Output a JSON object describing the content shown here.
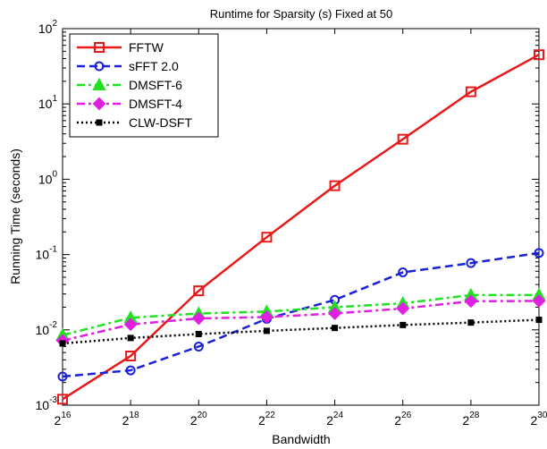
{
  "chart_data": {
    "type": "line",
    "title": "Runtime for Sparsity (s) Fixed at 50",
    "xlabel": "Bandwidth",
    "ylabel": "Running Time (seconds)",
    "x_scale": "log2",
    "y_scale": "log10",
    "x": [
      65536,
      131072,
      262144,
      524288,
      1048576,
      2097152,
      4194304,
      8388608,
      16777216,
      33554432,
      67108864,
      134217728,
      268435456,
      536870912,
      1073741824
    ],
    "xlim": [
      65536,
      1073741824
    ],
    "ylim": [
      0.001,
      100
    ],
    "x_tick_labels": [
      {
        "base": "2",
        "exp": "16"
      },
      {
        "base": "2",
        "exp": "18"
      },
      {
        "base": "2",
        "exp": "20"
      },
      {
        "base": "2",
        "exp": "22"
      },
      {
        "base": "2",
        "exp": "24"
      },
      {
        "base": "2",
        "exp": "26"
      },
      {
        "base": "2",
        "exp": "28"
      },
      {
        "base": "2",
        "exp": "30"
      }
    ],
    "y_tick_labels": [
      {
        "base": "10",
        "exp": "-3"
      },
      {
        "base": "10",
        "exp": "-2"
      },
      {
        "base": "10",
        "exp": "-1"
      },
      {
        "base": "10",
        "exp": "0"
      },
      {
        "base": "10",
        "exp": "1"
      },
      {
        "base": "10",
        "exp": "2"
      }
    ],
    "legend_position": "top-left",
    "grid": false,
    "series": [
      {
        "name": "FFTW",
        "color": "#e8191b",
        "dash": "solid",
        "marker": "square",
        "x": [
          65536,
          262144,
          1048576,
          4194304,
          16777216,
          67108864,
          268435456,
          1073741824
        ],
        "values": [
          0.0012,
          0.0045,
          0.033,
          0.17,
          0.82,
          3.4,
          14.5,
          45
        ]
      },
      {
        "name": "sFFT 2.0",
        "color": "#1a21d6",
        "dash": "dashed",
        "marker": "circle",
        "x": [
          65536,
          262144,
          1048576,
          4194304,
          16777216,
          67108864,
          268435456,
          1073741824
        ],
        "values": [
          0.0024,
          0.0029,
          0.006,
          0.014,
          0.025,
          0.058,
          0.077,
          0.105
        ]
      },
      {
        "name": "DMSFT-6",
        "color": "#22e022",
        "dash": "dashdot",
        "marker": "triangle",
        "x": [
          65536,
          262144,
          1048576,
          4194304,
          16777216,
          67108864,
          268435456,
          1073741824
        ],
        "values": [
          0.0085,
          0.0145,
          0.0165,
          0.0175,
          0.02,
          0.0225,
          0.029,
          0.029
        ]
      },
      {
        "name": "DMSFT-4",
        "color": "#e020e0",
        "dash": "dashdot",
        "marker": "diamond",
        "x": [
          65536,
          262144,
          1048576,
          4194304,
          16777216,
          67108864,
          268435456,
          1073741824
        ],
        "values": [
          0.0072,
          0.0118,
          0.0142,
          0.0148,
          0.0165,
          0.0192,
          0.024,
          0.0242
        ]
      },
      {
        "name": "CLW-DSFT",
        "color": "#000000",
        "dash": "dotted",
        "marker": "dot",
        "x": [
          65536,
          262144,
          1048576,
          4194304,
          16777216,
          67108864,
          268435456,
          1073741824
        ],
        "values": [
          0.0066,
          0.0078,
          0.0088,
          0.0097,
          0.0106,
          0.0116,
          0.0125,
          0.0136
        ]
      }
    ]
  }
}
